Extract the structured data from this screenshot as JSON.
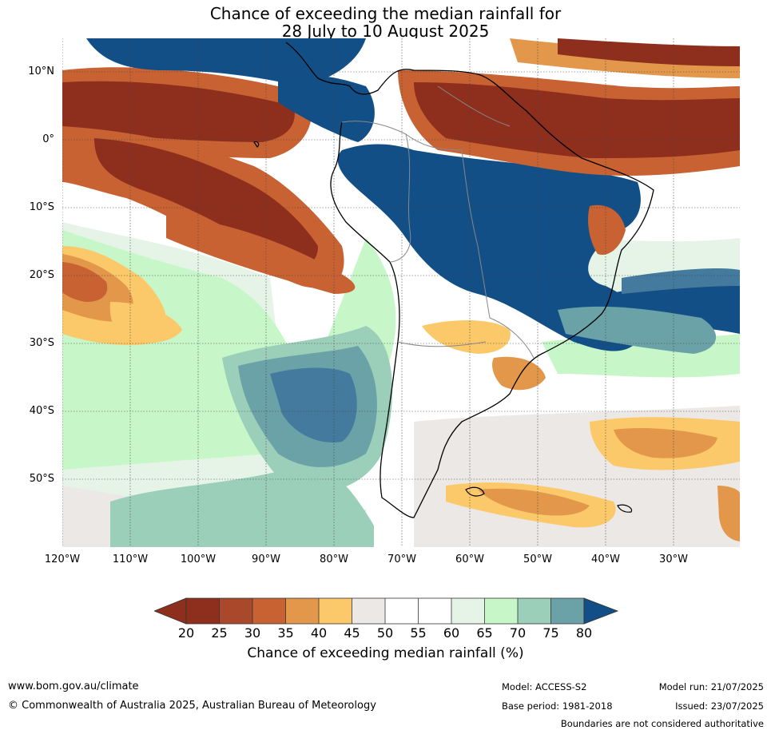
{
  "title": {
    "line1": "Chance of exceeding the median rainfall for",
    "line2": "28 July to 10 August 2025"
  },
  "map": {
    "region": "South America and surrounding oceans",
    "lat_ticks": [
      "10°N",
      "0°",
      "10°S",
      "20°S",
      "30°S",
      "40°S",
      "50°S"
    ],
    "lon_ticks": [
      "120°W",
      "110°W",
      "100°W",
      "90°W",
      "80°W",
      "70°W",
      "60°W",
      "50°W",
      "40°W",
      "30°W"
    ],
    "colors": {
      "c20": "#8e2f1e",
      "c25": "#a9482b",
      "c30": "#c86233",
      "c35": "#e2974a",
      "c40": "#fcc96a",
      "c45": "#ebe8e5",
      "c50": "#ffffff",
      "c55": "#ffffff",
      "c60": "#e6f4e8",
      "c65": "#c7f7c9",
      "c70": "#9bcfba",
      "c75": "#6aa2a8",
      "c80": "#437a9d",
      "c85": "#124f86"
    }
  },
  "colorbar": {
    "ticks": [
      "20",
      "25",
      "30",
      "35",
      "40",
      "45",
      "50",
      "55",
      "60",
      "65",
      "70",
      "75",
      "80"
    ],
    "label": "Chance of exceeding median rainfall (%)"
  },
  "footer": {
    "url": "www.bom.gov.au/climate",
    "copyright": "© Commonwealth of Australia 2025, Australian Bureau of Meteorology",
    "model": "Model: ACCESS-S2",
    "base_period": "Base period: 1981-2018",
    "model_run": "Model run: 21/07/2025",
    "issued": "Issued: 23/07/2025",
    "disclaimer": "Boundaries are not considered authoritative"
  }
}
